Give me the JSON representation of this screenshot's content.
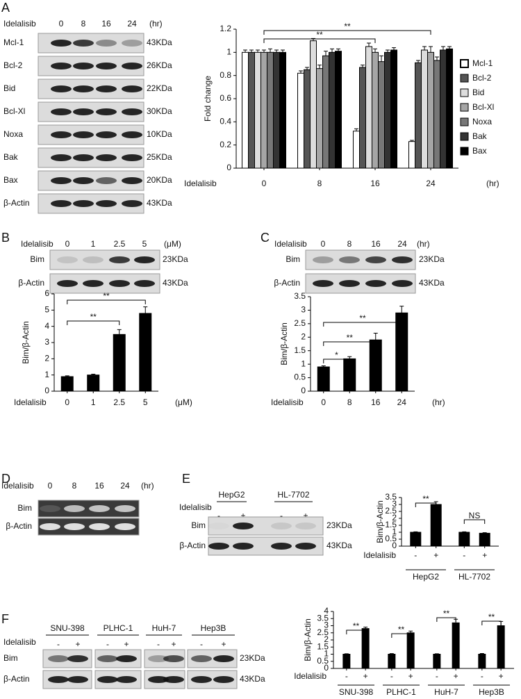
{
  "labels": [
    "A",
    "B",
    "C",
    "D",
    "E",
    "F"
  ],
  "blots": [
    {
      "treatment": "Idelalisib",
      "lanes": [
        "0",
        "8",
        "16",
        "24"
      ],
      "unit": "(hr)",
      "rows": [
        {
          "name": "Mcl-1",
          "size": "43KDa"
        },
        {
          "name": "Bcl-2",
          "size": "26KDa"
        },
        {
          "name": "Bid",
          "size": "22KDa"
        },
        {
          "name": "Bcl-Xl",
          "size": "30KDa"
        },
        {
          "name": "Noxa",
          "size": "10KDa"
        },
        {
          "name": "Bak",
          "size": "25KDa"
        },
        {
          "name": "Bax",
          "size": "20KDa"
        },
        {
          "name": "β-Actin",
          "size": "43KDa"
        }
      ]
    },
    {
      "treatment": "Idelalisib",
      "lanes": [
        "0",
        "1",
        "2.5",
        "5"
      ],
      "unit": "(μM)",
      "rows": [
        {
          "name": "Bim",
          "size": "23KDa"
        },
        {
          "name": "β-Actin",
          "size": "43KDa"
        }
      ]
    },
    {
      "treatment": "Idelalisib",
      "lanes": [
        "0",
        "8",
        "16",
        "24"
      ],
      "unit": "(hr)",
      "rows": [
        {
          "name": "Bim",
          "size": "23KDa"
        },
        {
          "name": "β-Actin",
          "size": "43KDa"
        }
      ]
    },
    {
      "treatment": "Idelalisib",
      "lanes": [
        "0",
        "8",
        "16",
        "24"
      ],
      "unit": "(hr)",
      "rows": [
        {
          "name": "Bim"
        },
        {
          "name": "β-Actin"
        }
      ]
    },
    {
      "treatment": "Idelalisib",
      "groups": [
        "HepG2",
        "HL-7702"
      ],
      "lanes": [
        "-",
        "+",
        "-",
        "+"
      ],
      "rows": [
        {
          "name": "Bim",
          "size": "23KDa"
        },
        {
          "name": "β-Actin",
          "size": "43KDa"
        }
      ]
    },
    {
      "treatment": "Idelalisib",
      "groups": [
        "SNU-398",
        "PLHC-1",
        "HuH-7",
        "Hep3B"
      ],
      "lanes": [
        "-",
        "+",
        "-",
        "+",
        "-",
        "+",
        "-",
        "+"
      ],
      "rows": [
        {
          "name": "Bim",
          "size": "23KDa"
        },
        {
          "name": "β-Actin",
          "size": "43KDa"
        }
      ]
    }
  ],
  "chart_data": [
    {
      "type": "bar",
      "ylabel": "Fold change",
      "xlabel": "Idelalisib",
      "xunit": "(hr)",
      "categories": [
        "0",
        "8",
        "16",
        "24"
      ],
      "series": [
        {
          "name": "Mcl-1",
          "color": "#ffffff",
          "values": [
            1,
            0.82,
            0.32,
            0.23
          ],
          "errors": [
            0.02,
            0.02,
            0.02,
            0.01
          ]
        },
        {
          "name": "Bcl-2",
          "color": "#555555",
          "values": [
            1,
            0.85,
            0.87,
            0.91
          ],
          "errors": [
            0.02,
            0.02,
            0.02,
            0.02
          ]
        },
        {
          "name": "Bid",
          "color": "#dddddd",
          "values": [
            1,
            1.1,
            1.05,
            1.02
          ],
          "errors": [
            0.02,
            0.02,
            0.03,
            0.03
          ]
        },
        {
          "name": "Bcl-Xl",
          "color": "#a6a6a6",
          "values": [
            1,
            0.86,
            1.0,
            1.0
          ],
          "errors": [
            0.02,
            0.03,
            0.03,
            0.05
          ]
        },
        {
          "name": "Noxa",
          "color": "#777777",
          "values": [
            1,
            0.97,
            0.92,
            0.93
          ],
          "errors": [
            0.03,
            0.04,
            0.05,
            0.03
          ]
        },
        {
          "name": "Bak",
          "color": "#333333",
          "values": [
            1,
            1.0,
            1.0,
            1.02
          ],
          "errors": [
            0.02,
            0.03,
            0.02,
            0.03
          ]
        },
        {
          "name": "Bax",
          "color": "#000000",
          "values": [
            1,
            1.01,
            1.02,
            1.03
          ],
          "errors": [
            0.02,
            0.02,
            0.02,
            0.02
          ]
        }
      ],
      "ylim": [
        0,
        1.2
      ],
      "yticks": [
        0,
        0.2,
        0.4,
        0.6,
        0.8,
        1,
        1.2
      ],
      "annotations": [
        "**",
        "**"
      ],
      "legend": "right"
    },
    {
      "type": "bar",
      "ylabel": "Bim/β-Actin",
      "xlabel": "Idelalisib",
      "xunit": "(μM)",
      "categories": [
        "0",
        "1",
        "2.5",
        "5"
      ],
      "values": [
        0.9,
        1.0,
        3.5,
        4.8
      ],
      "errors": [
        0.05,
        0.05,
        0.3,
        0.4
      ],
      "color": "#000000",
      "ylim": [
        0,
        6
      ],
      "yticks": [
        0,
        1,
        2,
        3,
        4,
        5,
        6
      ],
      "annotations": [
        "**",
        "**"
      ]
    },
    {
      "type": "bar",
      "ylabel": "Bim/β-Actin",
      "xlabel": "Idelalisib",
      "xunit": "(hr)",
      "categories": [
        "0",
        "8",
        "16",
        "24"
      ],
      "values": [
        0.9,
        1.2,
        1.9,
        2.9
      ],
      "errors": [
        0.04,
        0.08,
        0.25,
        0.25
      ],
      "color": "#000000",
      "ylim": [
        0,
        3.5
      ],
      "yticks": [
        0,
        0.5,
        1,
        1.5,
        2,
        2.5,
        3,
        3.5
      ],
      "annotations": [
        "*",
        "**",
        "**"
      ]
    },
    {
      "type": "bar",
      "ylabel": "Bim/β-Actin",
      "xlabel": "Idelalisib",
      "groups": [
        "HepG2",
        "HL-7702"
      ],
      "categories": [
        "-",
        "+",
        "-",
        "+"
      ],
      "values": [
        1.0,
        3.0,
        1.0,
        0.93
      ],
      "errors": [
        0.03,
        0.2,
        0.03,
        0.04
      ],
      "color": "#000000",
      "ylim": [
        0,
        3.5
      ],
      "yticks": [
        0,
        0.5,
        1,
        1.5,
        2,
        2.5,
        3,
        3.5
      ],
      "annotations": [
        "**",
        "NS"
      ]
    },
    {
      "type": "bar",
      "ylabel": "Bim/β-Actin",
      "xlabel": "Idelalisib",
      "groups": [
        "SNU-398",
        "PLHC-1",
        "HuH-7",
        "Hep3B"
      ],
      "categories": [
        "-",
        "+",
        "-",
        "+",
        "-",
        "+",
        "-",
        "+"
      ],
      "values": [
        1.0,
        2.8,
        1.0,
        2.5,
        1.0,
        3.2,
        1.0,
        3.0
      ],
      "errors": [
        0.03,
        0.1,
        0.04,
        0.12,
        0.03,
        0.25,
        0.05,
        0.3
      ],
      "color": "#000000",
      "ylim": [
        0,
        4
      ],
      "yticks": [
        0,
        0.5,
        1,
        1.5,
        2,
        2.5,
        3,
        3.5,
        4
      ],
      "annotations": [
        "**",
        "**",
        "**",
        "**"
      ]
    }
  ]
}
